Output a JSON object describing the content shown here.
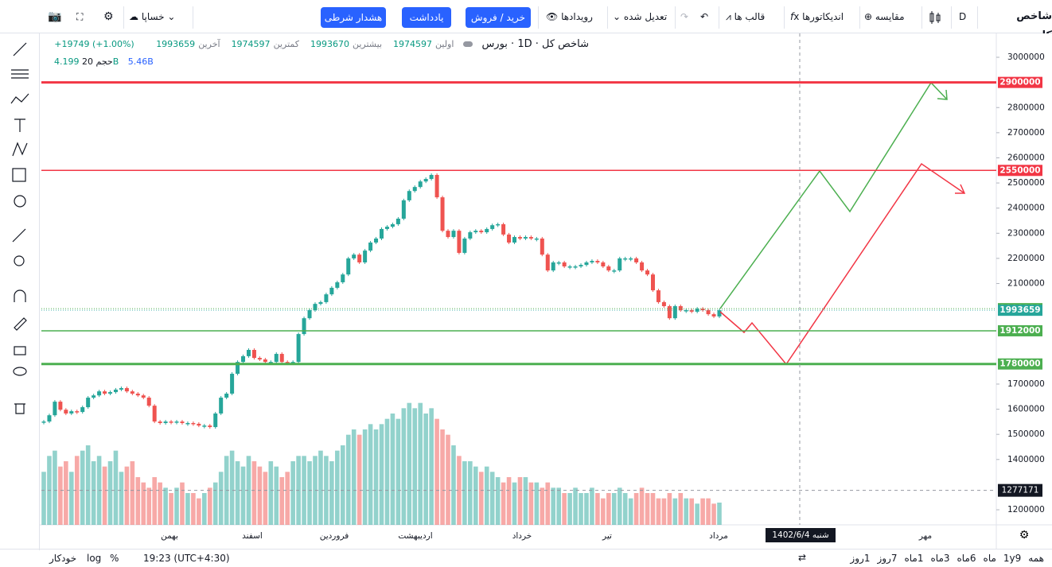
{
  "toolbar": {
    "symbol": "شاخص کل",
    "interval": "D",
    "compare": "مقایسه",
    "indicators": "اندیکاتورها",
    "templates": "قالب ها",
    "adjusted": "تعدیل شده",
    "events": "رویدادها",
    "trade": "خرید / فروش",
    "note": "یادداشت",
    "alert": "هشدار شرطی",
    "layout": "خساپا"
  },
  "legend": {
    "title": "شاخص کل · 1D · بورس",
    "stats": [
      {
        "label": "اولین",
        "value": 1974597
      },
      {
        "label": "بیشترین",
        "value": 1993670
      },
      {
        "label": "کمترین",
        "value": 1974597
      },
      {
        "label": "آخرین",
        "value": 1993659
      }
    ],
    "change": "+19749 (+1.00%)",
    "volume_label": "حجم 20",
    "volume_value": "4.199B",
    "volume_ma": "5.46B"
  },
  "chart_data": {
    "type": "candlestick",
    "closes": [
      1551000,
      1576000,
      1630000,
      1598000,
      1583000,
      1592000,
      1589000,
      1608000,
      1646000,
      1655000,
      1671000,
      1662000,
      1668000,
      1678000,
      1684000,
      1671000,
      1662000,
      1655000,
      1646000,
      1614000,
      1551000,
      1545000,
      1551000,
      1548000,
      1551000,
      1545000,
      1545000,
      1542000,
      1535000,
      1535000,
      1529000,
      1583000,
      1646000,
      1662000,
      1741000,
      1788000,
      1811000,
      1836000,
      1804000,
      1798000,
      1788000,
      1788000,
      1820000,
      1788000,
      1782000,
      1788000,
      1899000,
      1962000,
      1994000,
      2019000,
      2026000,
      2057000,
      2083000,
      2105000,
      2136000,
      2200000,
      2215000,
      2184000,
      2231000,
      2263000,
      2279000,
      2317000,
      2326000,
      2336000,
      2358000,
      2431000,
      2468000,
      2484000,
      2506000,
      2516000,
      2532000,
      2443000,
      2310000,
      2285000,
      2310000,
      2222000,
      2279000,
      2304000,
      2310000,
      2304000,
      2317000,
      2332000,
      2336000,
      2295000,
      2263000,
      2285000,
      2279000,
      2285000,
      2279000,
      2279000,
      2215000,
      2152000,
      2184000,
      2184000,
      2168000,
      2168000,
      2168000,
      2174000,
      2184000,
      2190000,
      2184000,
      2168000,
      2152000,
      2152000,
      2200000,
      2200000,
      2200000,
      2184000,
      2152000,
      2136000,
      2073000,
      2026000,
      2010000,
      1962000,
      2010000,
      1994000,
      1994000,
      1988000,
      2000000,
      1994000,
      1978000,
      1969000,
      1993659
    ],
    "volumes": [
      10,
      13,
      14,
      11,
      12,
      10,
      13,
      14,
      15,
      12,
      13,
      11,
      12,
      14,
      10,
      11,
      12,
      9,
      8,
      7,
      9,
      8,
      7,
      6,
      7,
      8,
      6,
      6,
      5,
      6,
      7,
      8,
      10,
      13,
      14,
      12,
      11,
      13,
      12,
      11,
      10,
      12,
      11,
      9,
      10,
      12,
      13,
      13,
      12,
      13,
      14,
      13,
      12,
      14,
      15,
      17,
      18,
      17,
      18,
      19,
      18,
      19,
      20,
      21,
      20,
      22,
      23,
      22,
      23,
      21,
      22,
      20,
      18,
      17,
      15,
      13,
      12,
      12,
      11,
      10,
      11,
      10,
      9,
      8,
      9,
      8,
      9,
      9,
      8,
      8,
      7,
      8,
      7,
      7,
      6,
      6,
      7,
      6,
      6,
      7,
      6,
      5,
      6,
      6,
      7,
      6,
      5,
      6,
      7,
      6,
      6,
      5,
      5,
      6,
      5,
      6,
      5,
      5,
      4,
      5,
      5,
      4,
      4.199
    ],
    "up_color": "#26a69a",
    "down_color": "#ef5350",
    "ylim": [
      1140000,
      3095000
    ],
    "volume_ylim": [
      0,
      30
    ],
    "yticks": [
      3000000,
      2800000,
      2700000,
      2600000,
      2500000,
      2400000,
      2300000,
      2200000,
      2100000,
      1700000,
      1600000,
      1500000,
      1400000,
      1200000
    ],
    "levels": [
      {
        "value": 2900000,
        "color": "#f23645",
        "width": 3
      },
      {
        "value": 2550000,
        "color": "#f23645",
        "width": 1.5
      },
      {
        "value": 2000000,
        "color": "#4caf50",
        "width": 1
      },
      {
        "value": 1993659,
        "color": "#26a69a",
        "width": 0.8
      },
      {
        "value": 1912000,
        "color": "#4caf50",
        "width": 1.5
      },
      {
        "value": 1780000,
        "color": "#4caf50",
        "width": 3
      }
    ],
    "crosshair_value": 1277171,
    "crosshair_date": "شنبه 1402/6/4",
    "time_labels": [
      "بهمن",
      "اسفند",
      "فروردین",
      "اردیبهشت",
      "خرداد",
      "تیر",
      "مرداد",
      "مهر"
    ]
  },
  "bottom_bar": {
    "ranges": [
      "همه",
      "1y",
      "9ماه",
      "6ماه",
      "3ماه",
      "1ماه",
      "7روز",
      "1روز"
    ],
    "time": "19:23 (UTC+4:30)",
    "percent": "%",
    "log": "log",
    "auto": "خودکار"
  }
}
